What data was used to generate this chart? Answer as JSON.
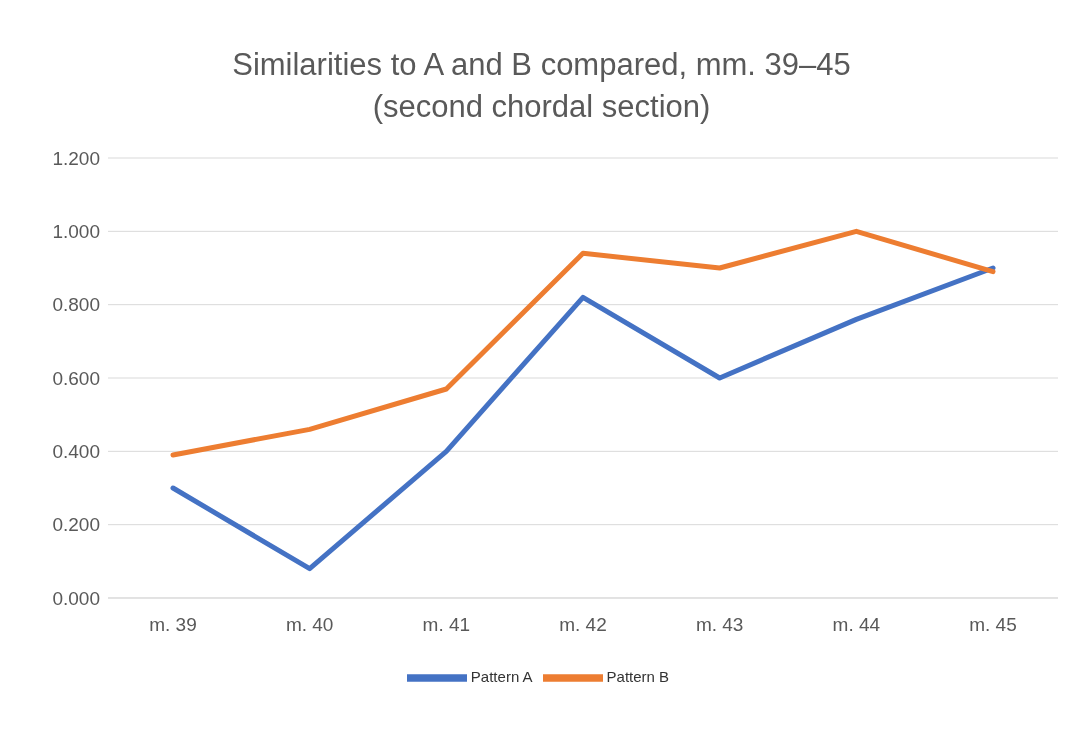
{
  "chart_data": {
    "type": "line",
    "title": "Similarities to A and B compared, mm. 39–45\n(second chordal section)",
    "categories": [
      "m. 39",
      "m. 40",
      "m. 41",
      "m. 42",
      "m. 43",
      "m. 44",
      "m. 45"
    ],
    "series": [
      {
        "name": "Pattern A",
        "color": "#4472c4",
        "values": [
          0.3,
          0.08,
          0.4,
          0.82,
          0.6,
          0.76,
          0.9
        ]
      },
      {
        "name": "Pattern B",
        "color": "#ed7d31",
        "values": [
          0.39,
          0.46,
          0.57,
          0.94,
          0.9,
          1.0,
          0.89
        ]
      }
    ],
    "ylim": [
      0,
      1.2
    ],
    "yticks": [
      {
        "value": 0,
        "label": "0.000"
      },
      {
        "value": 0.2,
        "label": "0.200"
      },
      {
        "value": 0.4,
        "label": "0.400"
      },
      {
        "value": 0.6,
        "label": "0.600"
      },
      {
        "value": 0.8,
        "label": "0.800"
      },
      {
        "value": 1,
        "label": "1.000"
      },
      {
        "value": 1.2,
        "label": "1.200"
      }
    ],
    "grid": "y",
    "legend": "bottom",
    "marker": "none",
    "line_style": "solid"
  }
}
